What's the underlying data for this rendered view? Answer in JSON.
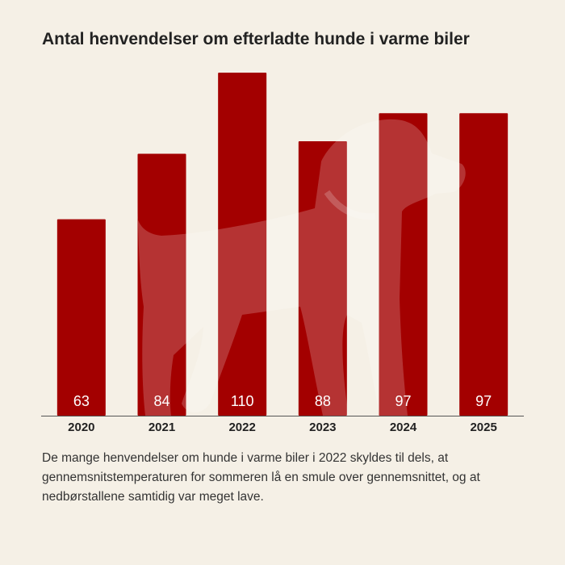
{
  "chart_data": {
    "type": "bar",
    "title": "Antal henvendelser om efterladte hunde i varme biler",
    "categories": [
      "2020",
      "2021",
      "2022",
      "2023",
      "2024",
      "2025"
    ],
    "values": [
      63,
      84,
      110,
      88,
      97,
      97
    ],
    "color": "#a30000",
    "ylim": [
      0,
      110
    ],
    "note": "De mange henvendelser om hunde i varme biler i 2022 skyldes til dels, at gennemsnitstemperaturen for sommeren lå en smule over gennemsnittet, og at nedbørstallene samtidig var meget lave."
  }
}
